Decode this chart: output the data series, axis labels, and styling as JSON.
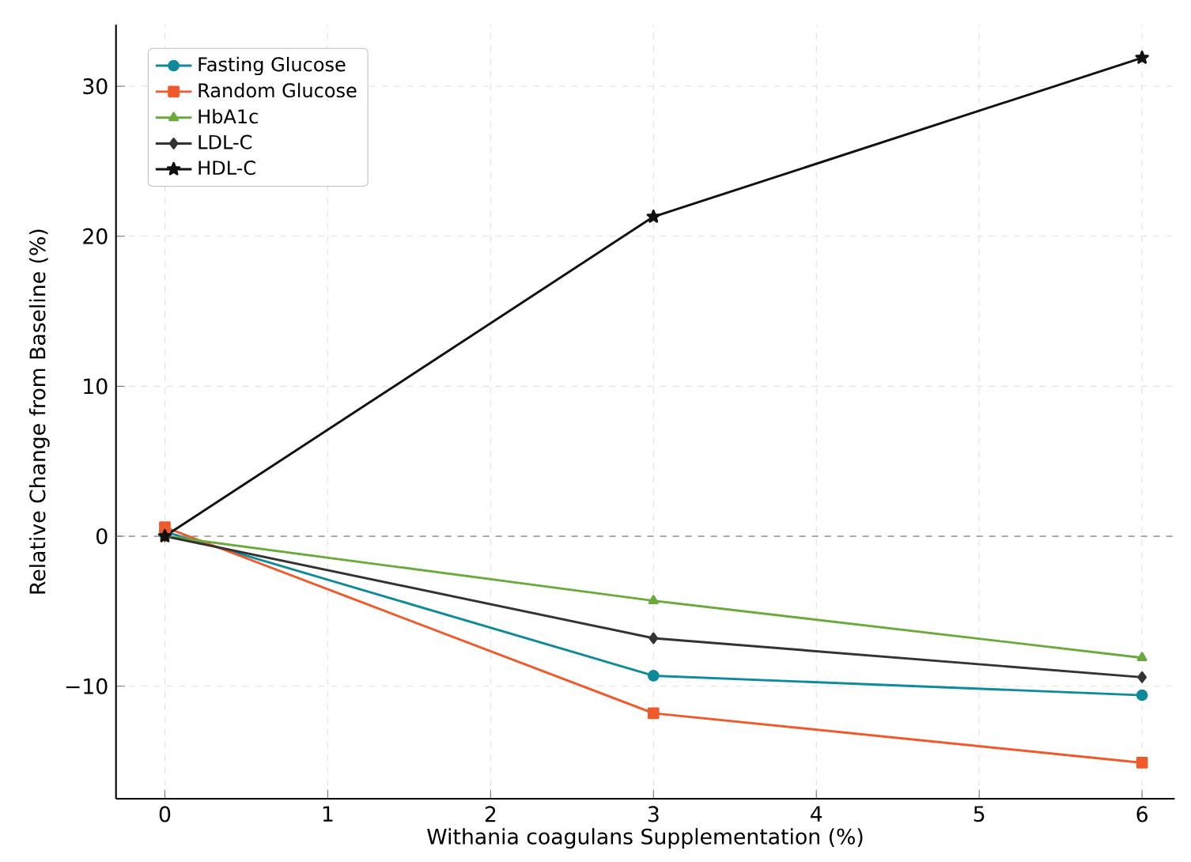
{
  "chart_data": {
    "type": "line",
    "xlabel": "Withania coagulans Supplementation (%)",
    "ylabel": "Relative Change from Baseline (%)",
    "x": [
      0,
      3,
      6
    ],
    "series": [
      {
        "name": "Fasting Glucose",
        "color": "#0e8a9a",
        "marker": "circle",
        "values": [
          0.3,
          -9.3,
          -10.6
        ]
      },
      {
        "name": "Random Glucose",
        "color": "#f0592a",
        "marker": "square",
        "values": [
          0.6,
          -11.8,
          -15.1
        ]
      },
      {
        "name": "HbA1c",
        "color": "#6aaa3a",
        "marker": "triangle",
        "values": [
          0,
          -4.3,
          -8.1
        ]
      },
      {
        "name": "LDL-C",
        "color": "#333333",
        "marker": "diamond",
        "values": [
          0,
          -6.8,
          -9.4
        ]
      },
      {
        "name": "HDL-C",
        "color": "#111111",
        "marker": "star",
        "values": [
          0,
          21.3,
          31.9
        ]
      }
    ],
    "xlim": [
      -0.3,
      6.2
    ],
    "ylim": [
      -17.5,
      34.1
    ],
    "xticks": [
      0,
      1,
      2,
      3,
      4,
      5,
      6
    ],
    "yticks": [
      {
        "value": -10,
        "label": "−10"
      },
      0,
      10,
      20,
      30
    ],
    "ref_lines": [
      {
        "axis": "y",
        "value": 0,
        "color": "#888888",
        "line_style": "dashed"
      }
    ],
    "grid": true,
    "legend": "top left",
    "line_style": "solid"
  }
}
